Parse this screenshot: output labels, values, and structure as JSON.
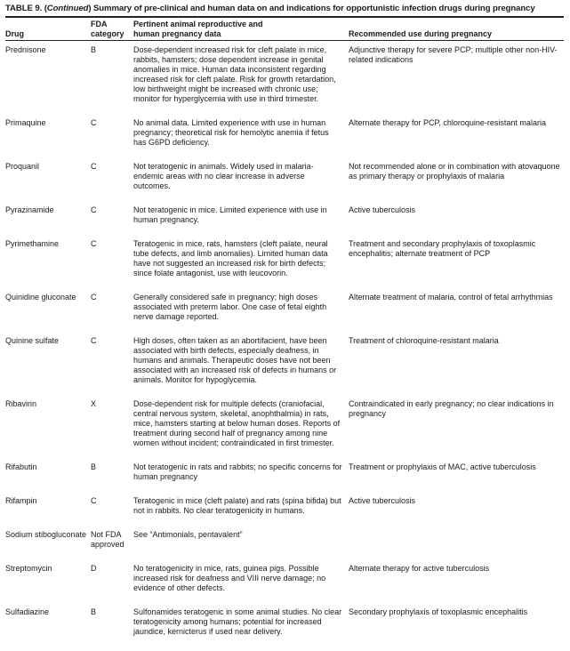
{
  "title": {
    "prefix": "TABLE 9. (",
    "continued": "Continued",
    "rest": ") Summary of pre-clinical and human data on and indications for opportunistic infection drugs during pregnancy"
  },
  "headers": {
    "drug": "Drug",
    "fda_line1": "FDA",
    "fda_line2": "category",
    "data_line1": "Pertinent animal reproductive and",
    "data_line2": "human pregnancy data",
    "use": "Recommended use during pregnancy"
  },
  "rows": [
    {
      "drug": "Prednisone",
      "category": "B",
      "data": "Dose-dependent increased risk for cleft palate in mice, rabbits, hamsters; dose dependent increase in genital anomalies in mice. Human data inconsistent regarding increased risk for cleft palate. Risk for growth retardation, low birthweight might be increased with chronic use; monitor for hyperglycemia with use in third trimester.",
      "use": "Adjunctive therapy for severe PCP; multiple other non-HIV-related indications"
    },
    {
      "drug": "Primaquine",
      "category": "C",
      "data": "No animal data. Limited experience with use in human pregnancy; theoretical risk for hemolytic anemia if fetus has G6PD deficiency.",
      "use": "Alternate therapy for PCP, chloroquine-resistant malaria"
    },
    {
      "drug": "Proquanil",
      "category": "C",
      "data": "Not teratogenic in animals. Widely used in malaria-endemic areas with no clear increase in adverse outcomes.",
      "use": "Not recommended alone or in combination with atovaquone as primary therapy or prophylaxis of malaria"
    },
    {
      "drug": "Pyrazinamide",
      "category": "C",
      "data": "Not teratogenic in mice. Limited experience with use in human pregnancy.",
      "use": "Active tuberculosis"
    },
    {
      "drug": "Pyrimethamine",
      "category": "C",
      "data": "Teratogenic in mice, rats, hamsters (cleft palate, neural tube defects, and limb anomalies). Limited human data have not suggested an increased risk for birth defects; since folate antagonist, use with leucovorin.",
      "use": "Treatment and secondary prophylaxis of toxoplasmic encephalitis; alternate treatment of PCP"
    },
    {
      "drug": "Quinidine gluconate",
      "category": "C",
      "data": "Generally considered safe in pregnancy; high doses associated with preterm labor. One case of fetal eighth nerve damage reported.",
      "use": "Alternate treatment of malaria, control of fetal arrhythmias"
    },
    {
      "drug": "Quinine sulfate",
      "category": "C",
      "data": "High doses, often taken as an abortifacient, have been associated with birth defects, especially deafness, in humans and animals. Therapeutic doses have not been associated with an increased risk of defects in humans or animals. Monitor for hypoglycemia.",
      "use": "Treatment of chloroquine-resistant malaria"
    },
    {
      "drug": "Ribavirin",
      "category": "X",
      "data": "Dose-dependent risk for multiple defects (craniofacial, central nervous system, skeletal, anophthalmia) in rats, mice, hamsters starting at below human doses. Reports of treatment during second half of pregnancy among nine women without incident; contraindicated in first trimester.",
      "use": "Contraindicated in early pregnancy; no clear indications in pregnancy"
    },
    {
      "drug": "Rifabutin",
      "category": "B",
      "data": "Not teratogenic in rats and rabbits; no specific concerns for human pregnancy",
      "use": "Treatment or prophylaxis of MAC, active tuberculosis"
    },
    {
      "drug": "Rifampin",
      "category": "C",
      "data": "Teratogenic in mice (cleft palate) and rats (spina bifida) but not in rabbits. No clear teratogenicity in humans.",
      "use": "Active tuberculosis"
    },
    {
      "drug": "Sodium stibogluconate",
      "category": "Not FDA approved",
      "data": "See “Antimonials, pentavalent”",
      "use": ""
    },
    {
      "drug": "Streptomycin",
      "category": "D",
      "data": "No teratogenicity in mice, rats, guinea pigs. Possible increased risk for deafness and VIII nerve damage; no evidence of other defects.",
      "use": "Alternate therapy for active tuberculosis"
    },
    {
      "drug": "Sulfadiazine",
      "category": "B",
      "data": "Sulfonamides teratogenic in some animal studies. No clear teratogenicity among humans; potential for increased jaundice, kernicterus if used near delivery.",
      "use": "Secondary prophylaxis of toxoplasmic encephalitis"
    }
  ]
}
